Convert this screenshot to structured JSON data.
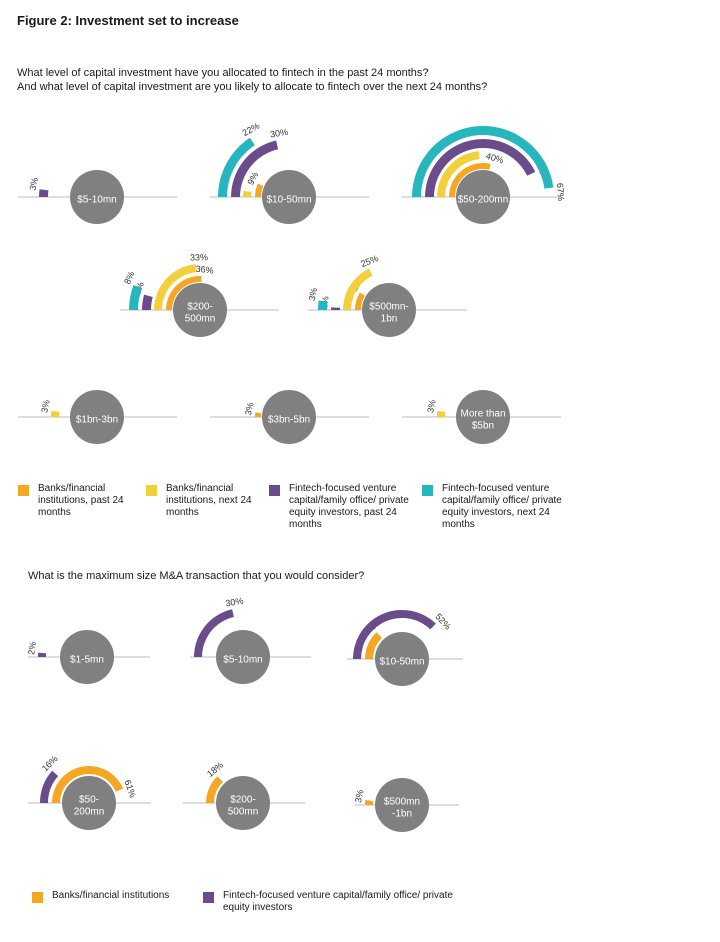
{
  "figure_title": "Figure 2: Investment set to increase",
  "questions": {
    "invest_line1": "What level of capital investment have you allocated to fintech in the past 24 months?",
    "invest_line2": "And what level of capital investment are you likely to allocate to fintech over the next 24 months?",
    "ma": "What is the maximum size M&A transaction that you would consider?"
  },
  "colors": {
    "banks_past": "#f5a623",
    "banks_next": "#f1d03b",
    "vc_past": "#6b4c8a",
    "vc_next": "#25b7bd",
    "circle": "#808080",
    "baseline": "#bbbbbb"
  },
  "legend_investment": [
    {
      "color": "#f5a623",
      "label": "Banks/financial institutions, past 24 months"
    },
    {
      "color": "#f1d03b",
      "label": "Banks/financial institutions, next 24 months"
    },
    {
      "color": "#6b4c8a",
      "label": "Fintech-focused venture capital/family office/ private equity investors, past 24 months"
    },
    {
      "color": "#25b7bd",
      "label": "Fintech-focused venture capital/family office/ private equity investors, next 24 months"
    }
  ],
  "legend_ma": [
    {
      "color": "#f5a623",
      "label": "Banks/financial institutions"
    },
    {
      "color": "#6b4c8a",
      "label": "Fintech-focused venture capital/family office/ private equity investors"
    }
  ],
  "chart_data": [
    {
      "type": "bar",
      "question": "What level of capital investment have you allocated to fintech in the past 24 months? And what level of capital investment are you likely to allocate to fintech over the next 24 months?",
      "unit": "%",
      "categories": [
        [
          "$5-10mn"
        ],
        [
          "$10-50mn"
        ],
        [
          "$50-200mn"
        ],
        [
          "$200-",
          "500mn"
        ],
        [
          "$500mn-",
          "1bn"
        ],
        [
          "$1bn-3bn"
        ],
        [
          "$3bn-5bn"
        ],
        [
          "More than",
          "$5bn"
        ]
      ],
      "series": [
        {
          "name": "Banks/financial institutions, past 24 months",
          "color": "#f5a623",
          "values": [
            null,
            9,
            40,
            36,
            12,
            null,
            3,
            null
          ]
        },
        {
          "name": "Banks/financial institutions, next 24 months",
          "color": "#f1d03b",
          "values": [
            null,
            3,
            33,
            33,
            25,
            3,
            null,
            3
          ]
        },
        {
          "name": "Fintech-focused venture capital/family office/ private equity investors, past 24 months",
          "color": "#6b4c8a",
          "values": [
            3,
            30,
            60,
            6,
            1,
            null,
            null,
            null
          ]
        },
        {
          "name": "Fintech-focused venture capital/family office/ private equity investors, next 24 months",
          "color": "#25b7bd",
          "values": [
            null,
            22,
            67,
            8,
            3,
            null,
            null,
            null
          ]
        }
      ]
    },
    {
      "type": "bar",
      "question": "What is the maximum size M&A transaction that you would consider?",
      "unit": "%",
      "categories": [
        [
          "$1-5mn"
        ],
        [
          "$5-10mn"
        ],
        [
          "$10-50mn"
        ],
        [
          "$50-",
          "200mn"
        ],
        [
          "$200-",
          "500mn"
        ],
        [
          "$500mn",
          "-1bn"
        ]
      ],
      "series": [
        {
          "name": "Banks/financial institutions",
          "color": "#f5a623",
          "values": [
            null,
            null,
            18,
            61,
            18,
            3
          ]
        },
        {
          "name": "Fintech-focused venture capital/family office/ private equity investors",
          "color": "#6b4c8a",
          "values": [
            2,
            30,
            52,
            16,
            null,
            null
          ]
        }
      ]
    }
  ]
}
